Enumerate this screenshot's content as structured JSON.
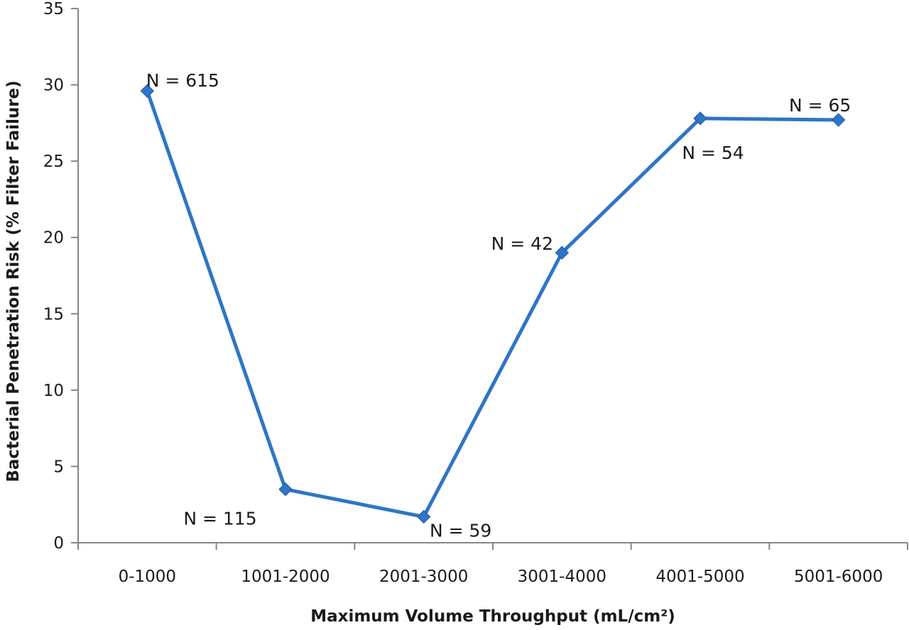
{
  "chart_data": {
    "type": "line",
    "categories": [
      "0-1000",
      "1001-2000",
      "2001-3000",
      "3001-4000",
      "4001-5000",
      "5001-6000"
    ],
    "series": [
      {
        "values": [
          29.6,
          3.5,
          1.7,
          19.0,
          27.8,
          27.7
        ]
      }
    ],
    "annotations": [
      "N = 615",
      "N = 115",
      "N = 59",
      "N = 42",
      "N = 54",
      "N = 65"
    ],
    "xlabel": "Maximum Volume Throughput (mL/cm²)",
    "ylabel": "Bacterial Penetration Risk (% Filter Failure)",
    "ylim": [
      0,
      35
    ],
    "yticks": [
      0,
      5,
      10,
      15,
      20,
      25,
      30,
      35
    ],
    "grid": false,
    "legend": "none",
    "line_color": "#2e75c7",
    "axis_color": "#868686"
  }
}
